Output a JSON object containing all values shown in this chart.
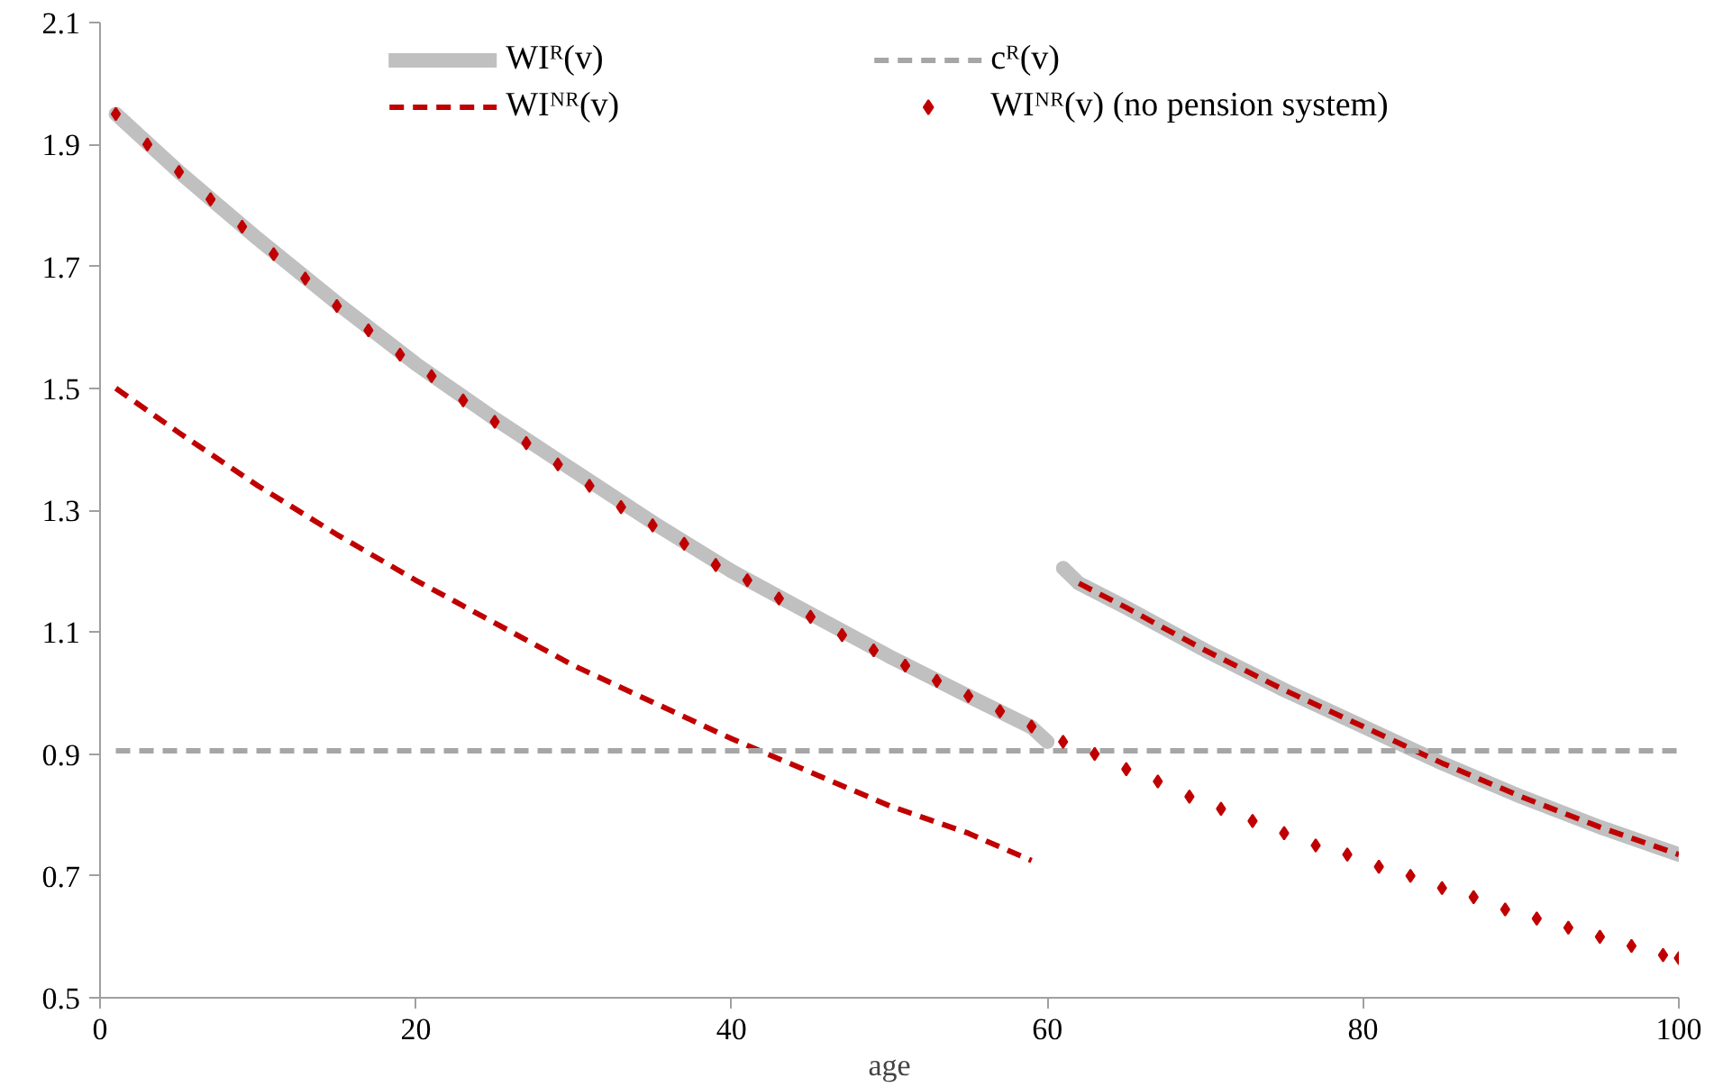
{
  "chart_data": {
    "type": "line",
    "xlabel": "age",
    "xlim": [
      0,
      100
    ],
    "ylim": [
      0.5,
      2.1
    ],
    "xticks": [
      0,
      20,
      40,
      60,
      80,
      100
    ],
    "yticks": [
      0.5,
      0.7,
      0.9,
      1.1,
      1.3,
      1.5,
      1.7,
      1.9,
      2.1
    ],
    "grid": false,
    "legend": "top",
    "series": [
      {
        "name": "WIᴿ(v)",
        "type": "line",
        "color": "#c0c0c0",
        "line_style": "solid",
        "x": [
          1,
          5,
          10,
          15,
          20,
          25,
          30,
          35,
          40,
          45,
          50,
          55,
          59,
          60,
          null,
          61,
          62,
          65,
          70,
          75,
          80,
          85,
          90,
          95,
          100
        ],
        "values": [
          1.95,
          1.855,
          1.745,
          1.64,
          1.54,
          1.45,
          1.365,
          1.28,
          1.2,
          1.13,
          1.06,
          0.995,
          0.944,
          0.92,
          null,
          1.205,
          1.18,
          1.14,
          1.07,
          1.005,
          0.945,
          0.885,
          0.83,
          0.78,
          0.735
        ]
      },
      {
        "name": "WIᴺᴿ(v)",
        "type": "line",
        "color": "#c00000",
        "line_style": "dashed",
        "x": [
          1,
          5,
          10,
          15,
          20,
          25,
          30,
          35,
          40,
          45,
          50,
          55,
          59,
          null,
          62,
          65,
          70,
          75,
          80,
          85,
          90,
          95,
          100
        ],
        "values": [
          1.5,
          1.427,
          1.34,
          1.26,
          1.185,
          1.115,
          1.045,
          0.985,
          0.925,
          0.87,
          0.815,
          0.77,
          0.725,
          null,
          1.18,
          1.14,
          1.07,
          1.005,
          0.945,
          0.885,
          0.83,
          0.78,
          0.735
        ]
      },
      {
        "name": "cᴿ(v)",
        "type": "line",
        "color": "#a6a6a6",
        "line_style": "dashed",
        "x": [
          1,
          100
        ],
        "values": [
          0.905,
          0.905
        ]
      },
      {
        "name": "WIᴺᴿ(v) (no pension system)",
        "type": "scatter",
        "marker": "diamond",
        "color": "#c00000",
        "x": [
          1,
          3,
          5,
          7,
          9,
          11,
          13,
          15,
          17,
          19,
          21,
          23,
          25,
          27,
          29,
          31,
          33,
          35,
          37,
          39,
          41,
          43,
          45,
          47,
          49,
          51,
          53,
          55,
          57,
          59,
          61,
          63,
          65,
          67,
          69,
          71,
          73,
          75,
          77,
          79,
          81,
          83,
          85,
          87,
          89,
          91,
          93,
          95,
          97,
          99,
          100
        ],
        "values": [
          1.95,
          1.9,
          1.855,
          1.81,
          1.765,
          1.72,
          1.68,
          1.635,
          1.595,
          1.555,
          1.52,
          1.48,
          1.445,
          1.41,
          1.375,
          1.34,
          1.305,
          1.275,
          1.245,
          1.21,
          1.185,
          1.155,
          1.125,
          1.095,
          1.07,
          1.045,
          1.02,
          0.995,
          0.97,
          0.945,
          0.92,
          0.9,
          0.875,
          0.855,
          0.83,
          0.81,
          0.79,
          0.77,
          0.75,
          0.735,
          0.715,
          0.7,
          0.68,
          0.665,
          0.645,
          0.63,
          0.615,
          0.6,
          0.585,
          0.57,
          0.565
        ]
      }
    ]
  }
}
